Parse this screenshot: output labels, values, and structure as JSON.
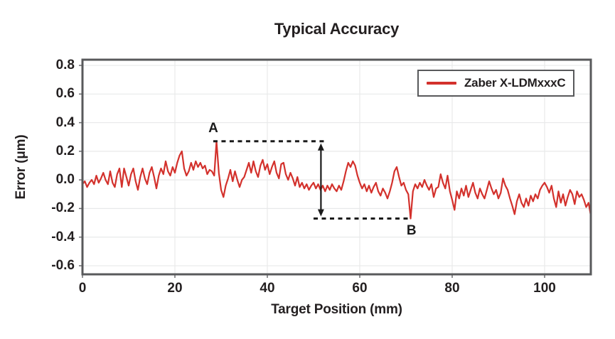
{
  "page": {
    "background": "#ffffff"
  },
  "colors": {
    "series_red": "#d3312c",
    "frame": "#58595b",
    "tick": "#6d6e71",
    "grid": "#e8e9ea",
    "text": "#231f20",
    "annotation": "#1b1b1b"
  },
  "chart_data": {
    "type": "line",
    "title": "Typical Accuracy",
    "xlabel": "Target Position (mm)",
    "ylabel": "Error (μm)",
    "xlim": [
      0,
      110
    ],
    "ylim": [
      -0.66,
      0.84
    ],
    "x_ticks": [
      0,
      20,
      40,
      60,
      80,
      100
    ],
    "y_ticks": [
      0.8,
      0.6,
      0.4,
      0.2,
      0,
      -0.2,
      -0.4,
      -0.6
    ],
    "y_tick_labels": [
      "0.8",
      "0.6",
      "0.4",
      "0.2",
      "0.0",
      "-0.2",
      "-0.4",
      "-0.6"
    ],
    "grid": true,
    "legend": {
      "position": "top-right",
      "entries": [
        {
          "label": "Zaber X-LDMxxxC",
          "color": "#d3312c"
        }
      ]
    },
    "series": [
      {
        "name": "Zaber X-LDMxxxC",
        "color": "#d3312c",
        "x_start": 0,
        "x_step": 0.5,
        "values": [
          -0.03,
          -0.01,
          -0.05,
          -0.02,
          0.0,
          -0.03,
          0.03,
          -0.02,
          0.01,
          0.05,
          0.0,
          -0.03,
          0.06,
          -0.02,
          -0.05,
          0.04,
          0.08,
          -0.05,
          0.08,
          0.02,
          -0.04,
          0.04,
          0.08,
          -0.01,
          -0.07,
          0.02,
          0.08,
          0.01,
          -0.03,
          0.05,
          0.09,
          0.02,
          -0.06,
          0.03,
          0.08,
          0.04,
          0.13,
          0.06,
          0.03,
          0.09,
          0.05,
          0.12,
          0.17,
          0.2,
          0.08,
          0.03,
          0.06,
          0.12,
          0.07,
          0.13,
          0.09,
          0.12,
          0.08,
          0.1,
          0.04,
          0.07,
          0.06,
          0.03,
          0.27,
          0.05,
          -0.07,
          -0.12,
          -0.04,
          0.01,
          0.07,
          -0.01,
          0.06,
          0.0,
          -0.05,
          0.0,
          0.02,
          0.07,
          0.12,
          0.05,
          0.13,
          0.06,
          0.02,
          0.1,
          0.14,
          0.07,
          0.11,
          0.04,
          0.09,
          0.13,
          0.05,
          0.01,
          0.11,
          0.12,
          0.04,
          0.0,
          0.05,
          0.01,
          -0.04,
          0.02,
          -0.05,
          -0.02,
          -0.06,
          -0.03,
          -0.07,
          -0.04,
          -0.02,
          -0.06,
          -0.03,
          -0.07,
          -0.04,
          -0.08,
          -0.04,
          -0.07,
          -0.03,
          -0.06,
          -0.08,
          -0.04,
          -0.07,
          -0.01,
          0.06,
          0.12,
          0.09,
          0.13,
          0.1,
          0.03,
          -0.02,
          -0.06,
          -0.03,
          -0.08,
          -0.04,
          -0.09,
          -0.05,
          -0.02,
          -0.08,
          -0.11,
          -0.06,
          -0.09,
          -0.13,
          -0.08,
          -0.02,
          0.06,
          0.09,
          0.02,
          -0.04,
          -0.02,
          -0.07,
          -0.1,
          -0.27,
          -0.08,
          -0.03,
          -0.06,
          -0.02,
          -0.05,
          0.0,
          -0.04,
          -0.07,
          -0.03,
          -0.12,
          -0.06,
          -0.05,
          0.04,
          -0.02,
          -0.06,
          0.03,
          -0.08,
          -0.14,
          -0.21,
          -0.08,
          -0.13,
          -0.06,
          -0.11,
          -0.04,
          -0.12,
          -0.07,
          -0.02,
          -0.09,
          -0.13,
          -0.06,
          -0.1,
          -0.13,
          -0.07,
          -0.01,
          -0.06,
          -0.1,
          -0.07,
          -0.13,
          -0.09,
          0.01,
          -0.04,
          -0.07,
          -0.13,
          -0.18,
          -0.24,
          -0.15,
          -0.1,
          -0.16,
          -0.19,
          -0.13,
          -0.18,
          -0.11,
          -0.15,
          -0.1,
          -0.13,
          -0.07,
          -0.04,
          -0.02,
          -0.05,
          -0.09,
          -0.04,
          -0.13,
          -0.19,
          -0.08,
          -0.16,
          -0.1,
          -0.18,
          -0.12,
          -0.07,
          -0.1,
          -0.17,
          -0.08,
          -0.12,
          -0.1,
          -0.14,
          -0.19,
          -0.16,
          -0.25
        ]
      }
    ],
    "annotations": {
      "point_a": {
        "label": "A",
        "x": 29,
        "y": 0.27
      },
      "point_b": {
        "label": "B",
        "x": 71,
        "y": -0.27
      },
      "dashed_line_top": {
        "y": 0.27,
        "x1": 28.3,
        "x2": 53
      },
      "dashed_line_bottom": {
        "y": -0.27,
        "x1": 50,
        "x2": 71.2
      },
      "arrow": {
        "x": 51.6,
        "y1": 0.27,
        "y2": -0.27,
        "style": "double-headed"
      }
    }
  }
}
